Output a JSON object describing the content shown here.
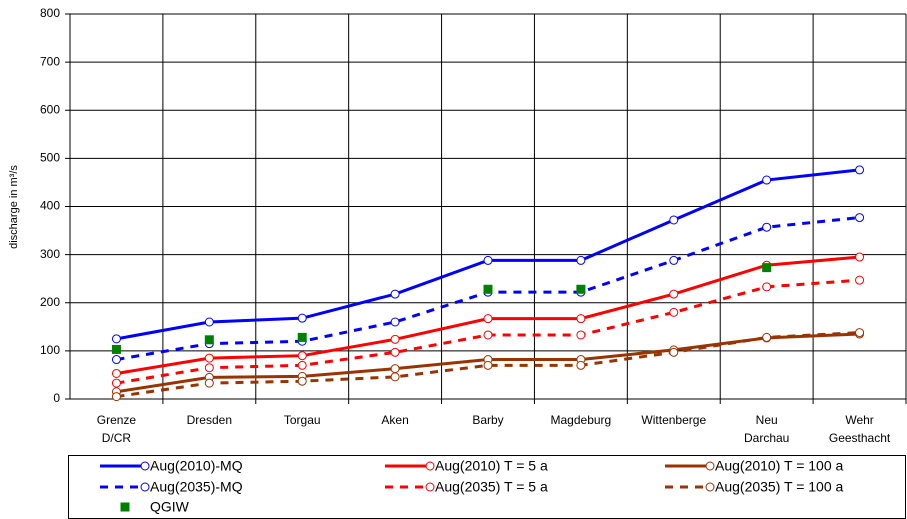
{
  "chart_data": {
    "type": "line",
    "y_label": "discharge in m³/s",
    "categories": [
      "Grenze D/CR",
      "Dresden",
      "Torgau",
      "Aken",
      "Barby",
      "Magdeburg",
      "Wittenberge",
      "Neu Darchau",
      "Wehr Geesthacht"
    ],
    "ylim": [
      0,
      800
    ],
    "yticks": [
      0,
      100,
      200,
      300,
      400,
      500,
      600,
      700,
      800
    ],
    "grid": true,
    "series": [
      {
        "name": "Aug(2010)-MQ",
        "color": "#0000ff",
        "dashed": false,
        "values": [
          125,
          160,
          168,
          218,
          288,
          288,
          372,
          455,
          476
        ]
      },
      {
        "name": "Aug(2010) T = 5 a",
        "color": "#ff0000",
        "dashed": false,
        "values": [
          53,
          85,
          90,
          124,
          167,
          167,
          218,
          278,
          295
        ]
      },
      {
        "name": "Aug(2010) T = 100 a",
        "color": "#993300",
        "dashed": false,
        "values": [
          15,
          45,
          47,
          63,
          82,
          82,
          102,
          127,
          135
        ]
      },
      {
        "name": "Aug(2035)-MQ",
        "color": "#0000ff",
        "dashed": true,
        "values": [
          82,
          115,
          120,
          160,
          222,
          222,
          288,
          357,
          377
        ]
      },
      {
        "name": "Aug(2035) T = 5 a",
        "color": "#ff0000",
        "dashed": true,
        "values": [
          33,
          65,
          70,
          97,
          133,
          133,
          180,
          233,
          247
        ]
      },
      {
        "name": "Aug(2035) T = 100 a",
        "color": "#993300",
        "dashed": true,
        "values": [
          5,
          33,
          37,
          46,
          70,
          70,
          97,
          128,
          138
        ]
      },
      {
        "name": "QGIW",
        "color": "#008000",
        "marker_only": true,
        "values": [
          103,
          123,
          128,
          null,
          228,
          228,
          null,
          273,
          null
        ]
      }
    ]
  }
}
